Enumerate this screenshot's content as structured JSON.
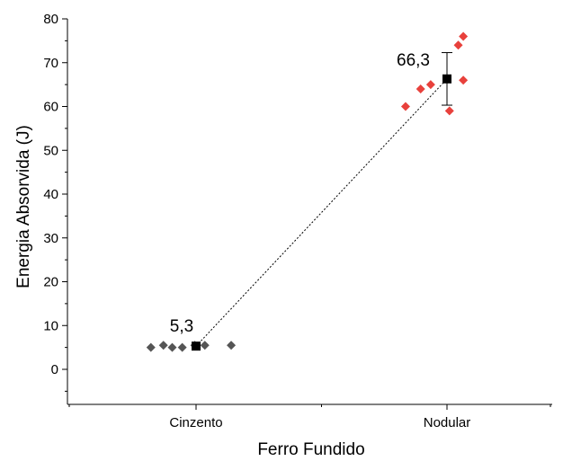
{
  "chart_data": {
    "type": "scatter",
    "title": "",
    "xlabel": "Ferro Fundido",
    "ylabel": "Energia Absorvida (J)",
    "ylim": [
      -8,
      80
    ],
    "y_ticks": [
      0,
      10,
      20,
      30,
      40,
      50,
      60,
      70,
      80
    ],
    "categories": [
      "Cinzento",
      "Nodular"
    ],
    "grid": false,
    "series": [
      {
        "category": "Cinzento",
        "color": "#555555",
        "points": [
          {
            "x": -0.36,
            "y": 5
          },
          {
            "x": -0.26,
            "y": 5.5
          },
          {
            "x": -0.19,
            "y": 5
          },
          {
            "x": -0.11,
            "y": 5
          },
          {
            "x": -0.01,
            "y": 5.5
          },
          {
            "x": 0.07,
            "y": 5.5
          },
          {
            "x": 0.28,
            "y": 5.5
          }
        ]
      },
      {
        "category": "Nodular",
        "color": "#e8413c",
        "points": [
          {
            "x": -0.33,
            "y": 60
          },
          {
            "x": -0.21,
            "y": 64
          },
          {
            "x": -0.13,
            "y": 65
          },
          {
            "x": 0.02,
            "y": 59
          },
          {
            "x": 0.09,
            "y": 74
          },
          {
            "x": 0.13,
            "y": 66
          },
          {
            "x": 0.13,
            "y": 76
          }
        ]
      }
    ],
    "means": [
      {
        "category": "Cinzento",
        "value": 5.3,
        "label": "5,3",
        "error": 0
      },
      {
        "category": "Nodular",
        "value": 66.3,
        "label": "66,3",
        "error": 6
      }
    ],
    "mean_color": "#000000"
  }
}
